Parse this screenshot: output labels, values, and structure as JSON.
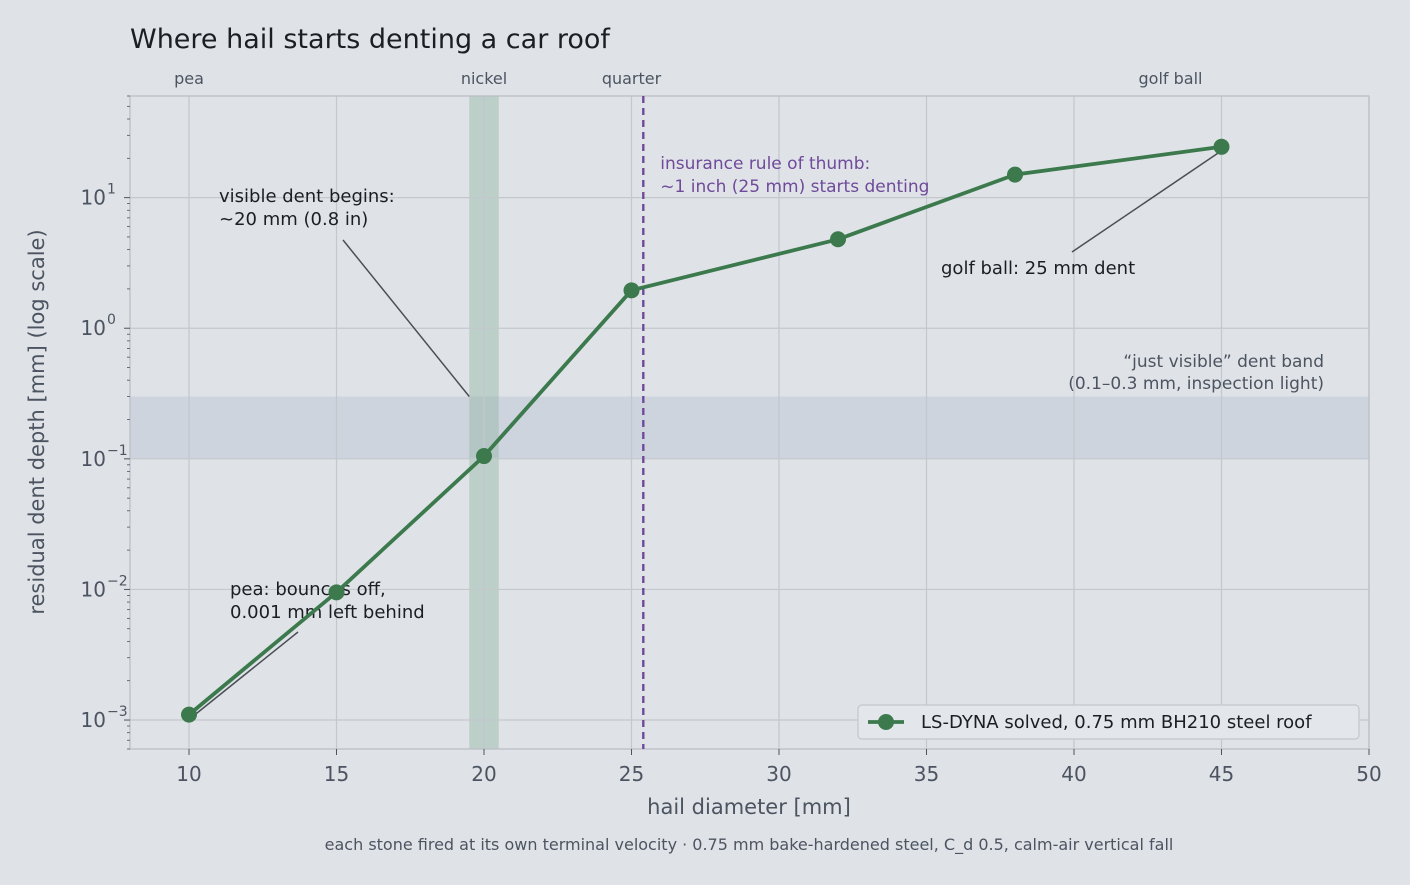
{
  "chart_data": {
    "type": "line",
    "title": "Where hail starts denting a car roof",
    "xlabel": "hail diameter  [mm]",
    "ylabel": "residual dent depth  [mm]  (log scale)",
    "footnote": "each stone fired at its own terminal velocity  ·  0.75 mm bake-hardened steel, C_d 0.5, calm-air vertical fall",
    "xlim": [
      8,
      50
    ],
    "ylim": [
      0.0006,
      60
    ],
    "yscale": "log",
    "grid": true,
    "legend_position": "lower-right",
    "x_ticks": [
      10,
      15,
      20,
      25,
      30,
      35,
      40,
      45,
      50
    ],
    "y_ticks": [
      {
        "value": 0.001,
        "base": "10",
        "exp": "−3"
      },
      {
        "value": 0.01,
        "base": "10",
        "exp": "−2"
      },
      {
        "value": 0.1,
        "base": "10",
        "exp": "−1"
      },
      {
        "value": 1,
        "base": "10",
        "exp": "0"
      },
      {
        "value": 10,
        "base": "10",
        "exp": "1"
      }
    ],
    "size_labels": [
      {
        "x": 10,
        "label": "pea"
      },
      {
        "x": 20,
        "label": "nickel"
      },
      {
        "x": 25,
        "label": "quarter"
      },
      {
        "x": 43,
        "label": "golf ball"
      }
    ],
    "series": [
      {
        "name": "LS-DYNA solved, 0.75 mm BH210 steel roof",
        "color": "#3c7a4e",
        "x": [
          10,
          15,
          20,
          25,
          32,
          38,
          45
        ],
        "y": [
          0.0011,
          0.0095,
          0.105,
          1.95,
          4.8,
          15,
          24.5
        ]
      }
    ],
    "bands": {
      "visible_band": {
        "y0": 0.1,
        "y1": 0.3,
        "color": "#b4bfd0",
        "label": [
          "“just visible” dent band",
          "(0.1–0.3 mm, inspection light)"
        ]
      },
      "nickel_band": {
        "x0": 19.5,
        "x1": 20.5,
        "color": "#8fb3a0"
      }
    },
    "threshold_line": {
      "x": 25.4,
      "color": "#6f4a9a",
      "label": [
        "insurance rule of thumb:",
        "~1 inch (25 mm) starts denting"
      ]
    },
    "annotations": [
      {
        "id": "pea",
        "lines": [
          "pea: bounces off,",
          "0.001 mm left behind"
        ],
        "target": [
          10,
          0.0011
        ]
      },
      {
        "id": "visible",
        "lines": [
          "visible dent begins:",
          "~20 mm (0.8 in)"
        ],
        "target": [
          19.5,
          0.3
        ]
      },
      {
        "id": "golf",
        "lines": [
          "golf ball: 25 mm dent"
        ],
        "target": [
          45,
          24.5
        ]
      }
    ],
    "colors": {
      "background": "#dfe3e7",
      "grid": "#c3c8cd",
      "axis_text": "#4c5461",
      "line": "#3c7a4e",
      "threshold": "#6f4a9a"
    }
  }
}
